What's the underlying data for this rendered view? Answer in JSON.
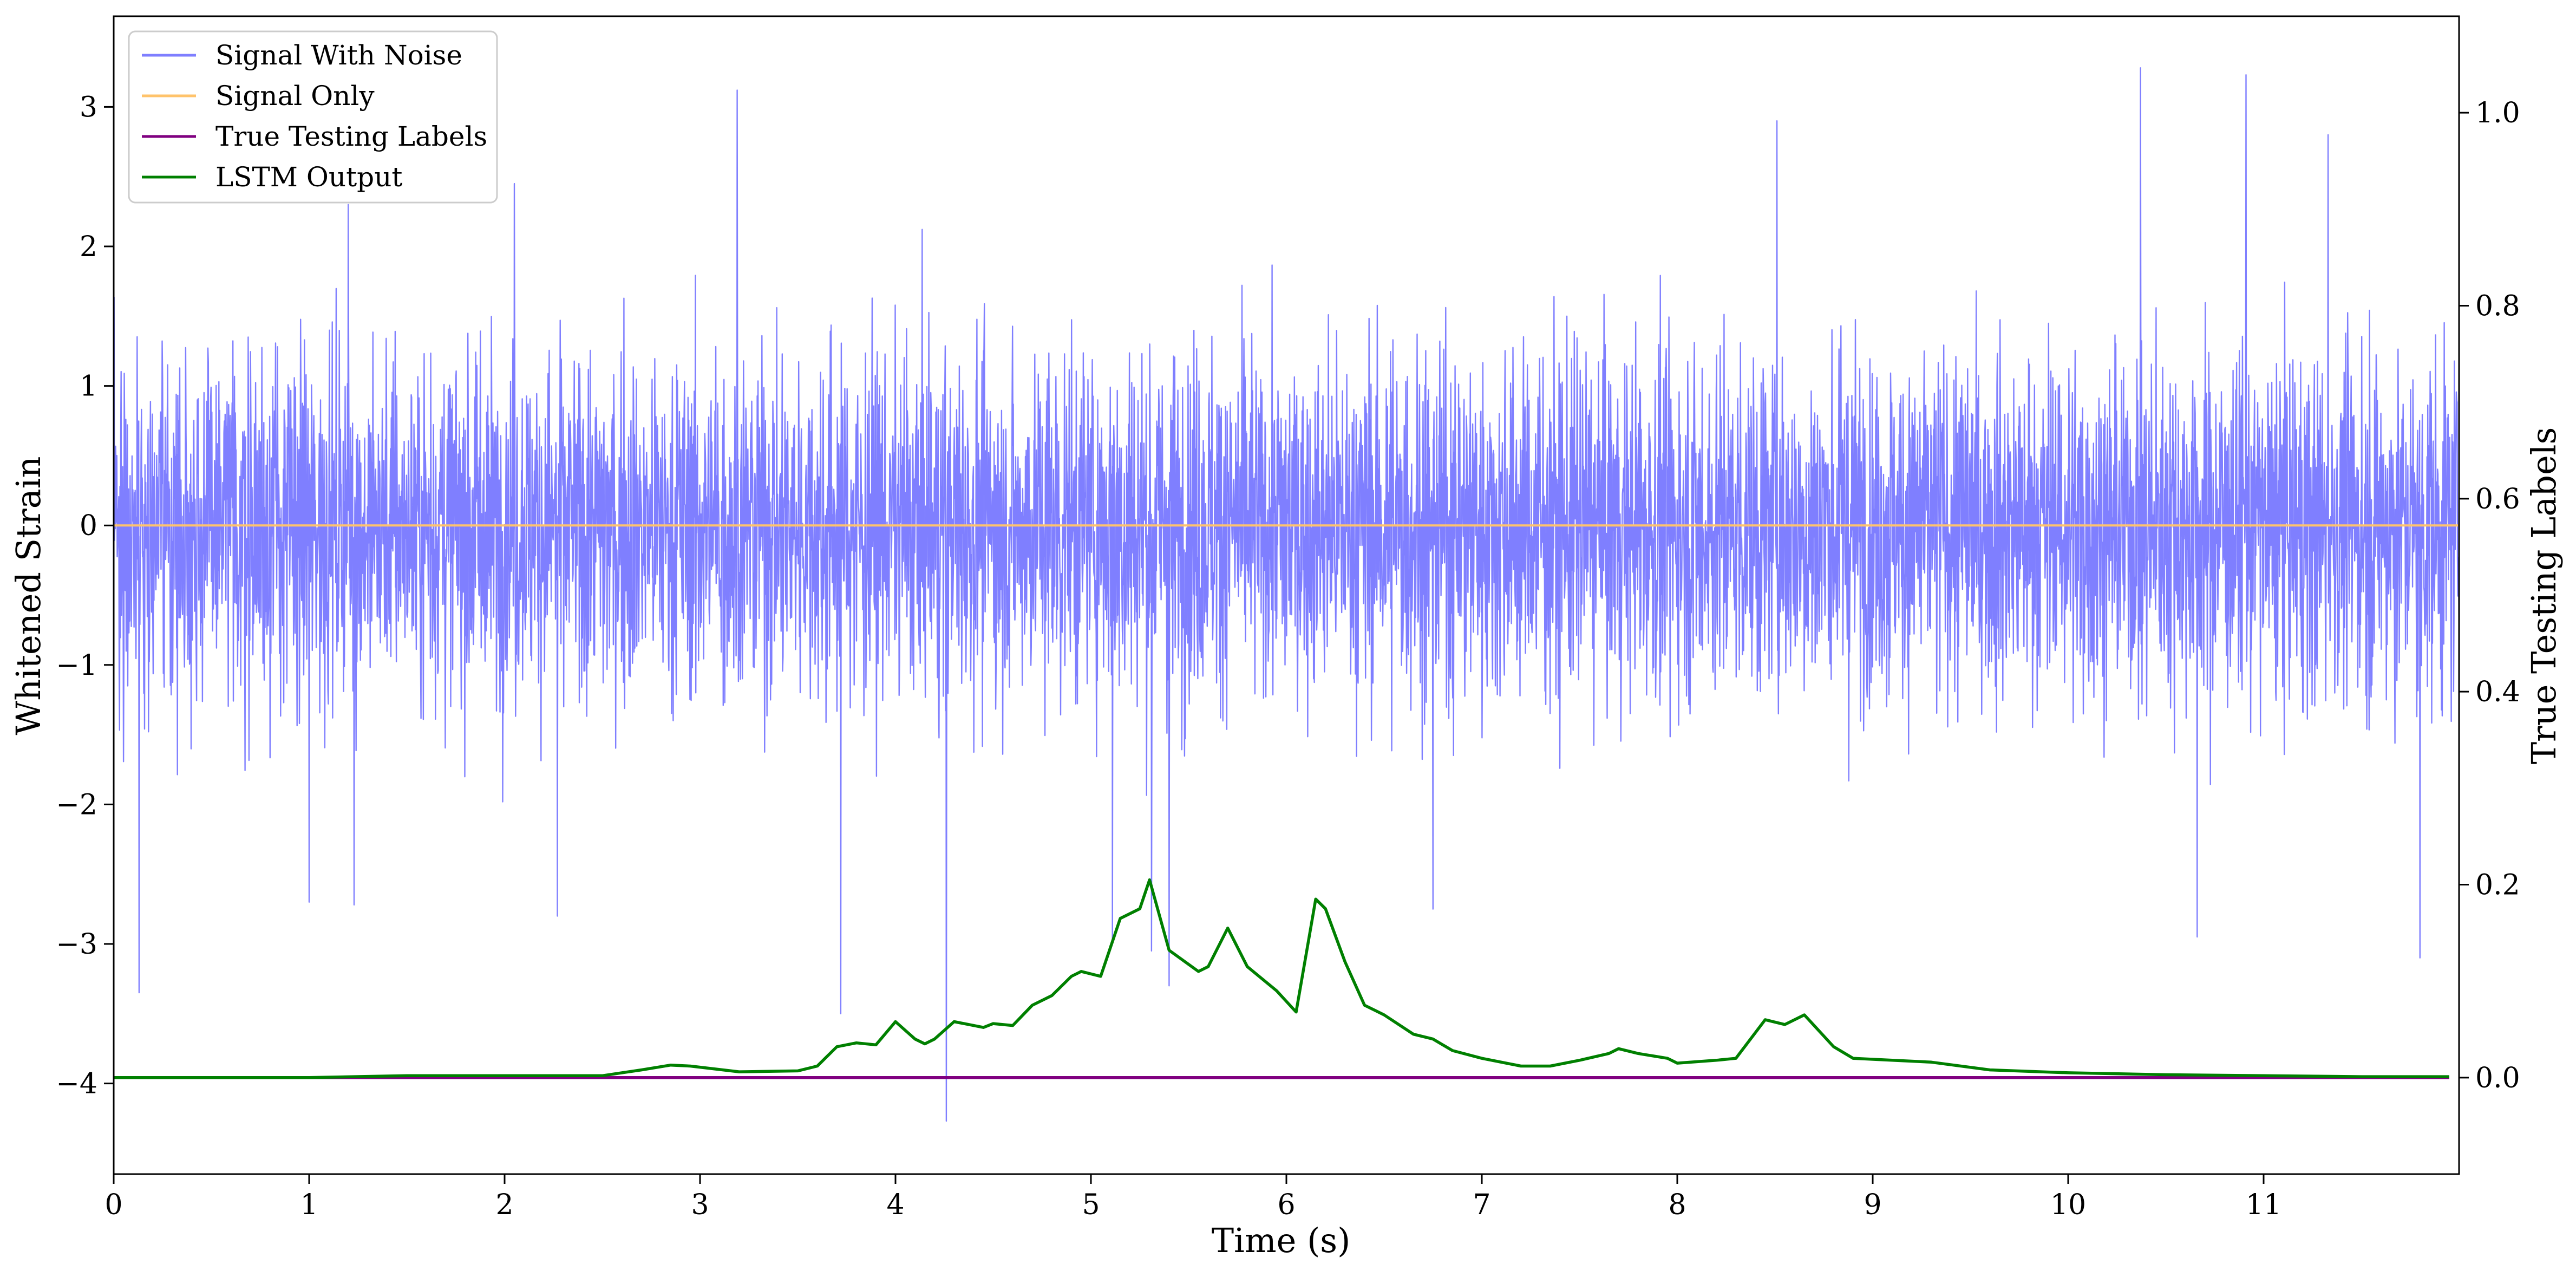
{
  "chart_data": {
    "type": "line",
    "xlabel": "Time (s)",
    "ylabel_left": "Whitened Strain",
    "ylabel_right": "True Testing Labels",
    "xlim": [
      0,
      12.0
    ],
    "ylim_left": [
      -4.65,
      3.65
    ],
    "ylim_right": [
      -0.1,
      1.1
    ],
    "x_ticks": [
      "0",
      "1",
      "2",
      "3",
      "4",
      "5",
      "6",
      "7",
      "8",
      "9",
      "10",
      "11"
    ],
    "y_ticks_left": [
      "3",
      "2",
      "1",
      "0",
      "−1",
      "−2",
      "−3",
      "−4"
    ],
    "y_ticks_right": [
      "1.0",
      "0.8",
      "0.6",
      "0.4",
      "0.2",
      "0.0"
    ],
    "grid": false,
    "legend_position": "top-left",
    "series": [
      {
        "name": "Signal With Noise",
        "axis": "left",
        "color": "#7f7fff",
        "kind": "noise",
        "std": 0.62,
        "band_approx": [
          -2.0,
          2.0
        ],
        "spikes": [
          [
            0.13,
            -3.35
          ],
          [
            1.0,
            -2.7
          ],
          [
            1.2,
            2.3
          ],
          [
            1.23,
            -2.72
          ],
          [
            2.05,
            2.45
          ],
          [
            2.27,
            -2.8
          ],
          [
            3.19,
            3.12
          ],
          [
            3.72,
            -3.5
          ],
          [
            4.26,
            -4.27
          ],
          [
            5.11,
            -3.0
          ],
          [
            5.31,
            -3.05
          ],
          [
            5.4,
            -3.3
          ],
          [
            6.75,
            -2.75
          ],
          [
            8.51,
            2.9
          ],
          [
            10.37,
            3.28
          ],
          [
            10.66,
            -2.95
          ],
          [
            10.91,
            3.23
          ],
          [
            11.33,
            2.8
          ],
          [
            11.8,
            -3.1
          ]
        ]
      },
      {
        "name": "Signal Only",
        "axis": "left",
        "color": "#ffc36b",
        "x": [
          0,
          12.0
        ],
        "values": [
          0,
          0
        ]
      },
      {
        "name": "True Testing Labels",
        "axis": "right",
        "color": "#800080",
        "x": [
          0,
          11.95
        ],
        "values": [
          0.0,
          0.0
        ]
      },
      {
        "name": "LSTM Output",
        "axis": "right",
        "color": "#008000",
        "x": [
          0,
          1,
          1.5,
          2,
          2.5,
          2.7,
          2.85,
          2.95,
          3.2,
          3.5,
          3.6,
          3.7,
          3.8,
          3.9,
          4.0,
          4.1,
          4.15,
          4.2,
          4.3,
          4.45,
          4.5,
          4.6,
          4.7,
          4.8,
          4.9,
          4.95,
          5.05,
          5.15,
          5.25,
          5.3,
          5.4,
          5.55,
          5.6,
          5.7,
          5.8,
          5.95,
          6.05,
          6.15,
          6.2,
          6.3,
          6.4,
          6.5,
          6.65,
          6.75,
          6.85,
          7.0,
          7.2,
          7.35,
          7.5,
          7.65,
          7.7,
          7.8,
          7.95,
          8.0,
          8.2,
          8.3,
          8.45,
          8.55,
          8.65,
          8.8,
          8.9,
          9.1,
          9.3,
          9.6,
          10.0,
          10.5,
          11.0,
          11.5,
          11.95
        ],
        "values": [
          0,
          0.0,
          0.002,
          0.002,
          0.002,
          0.008,
          0.013,
          0.012,
          0.006,
          0.007,
          0.012,
          0.032,
          0.036,
          0.034,
          0.058,
          0.04,
          0.035,
          0.04,
          0.058,
          0.052,
          0.056,
          0.054,
          0.075,
          0.085,
          0.105,
          0.11,
          0.105,
          0.165,
          0.175,
          0.205,
          0.132,
          0.11,
          0.115,
          0.155,
          0.115,
          0.09,
          0.068,
          0.185,
          0.175,
          0.12,
          0.075,
          0.065,
          0.045,
          0.04,
          0.028,
          0.02,
          0.012,
          0.012,
          0.018,
          0.025,
          0.03,
          0.025,
          0.02,
          0.015,
          0.018,
          0.02,
          0.06,
          0.055,
          0.065,
          0.032,
          0.02,
          0.018,
          0.016,
          0.008,
          0.005,
          0.003,
          0.002,
          0.001,
          0.001
        ]
      }
    ]
  }
}
